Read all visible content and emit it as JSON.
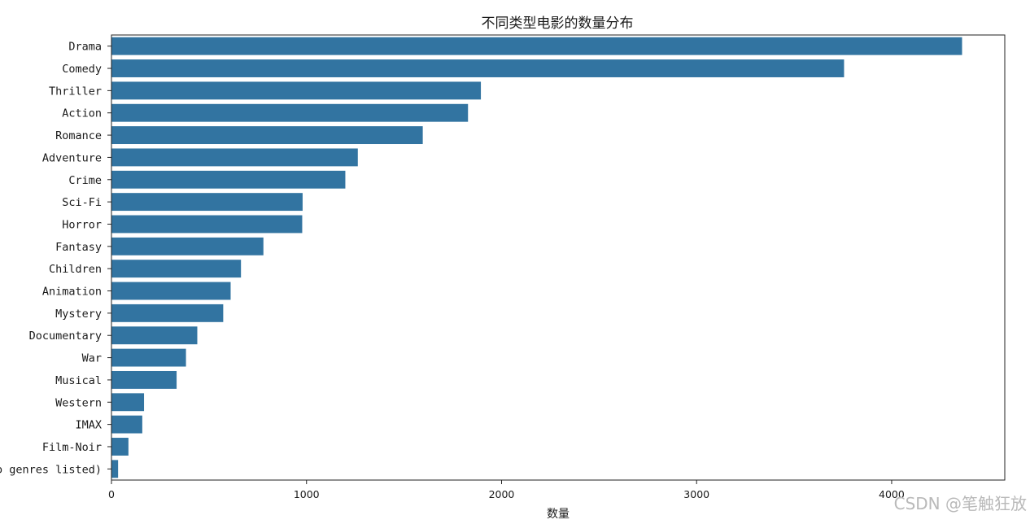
{
  "chart_data": {
    "type": "bar",
    "orientation": "horizontal",
    "title": "不同类型电影的数量分布",
    "xlabel": "数量",
    "ylabel": "",
    "xlim": [
      0,
      4580
    ],
    "xticks": [
      0,
      1000,
      2000,
      3000,
      4000
    ],
    "grid": false,
    "bar_color": "#3274a1",
    "categories": [
      "Drama",
      "Comedy",
      "Thriller",
      "Action",
      "Romance",
      "Adventure",
      "Crime",
      "Sci-Fi",
      "Horror",
      "Fantasy",
      "Children",
      "Animation",
      "Mystery",
      "Documentary",
      "War",
      "Musical",
      "Western",
      "IMAX",
      "Film-Noir",
      "(no genres listed)"
    ],
    "values": [
      4361,
      3756,
      1894,
      1828,
      1596,
      1263,
      1199,
      980,
      978,
      779,
      664,
      611,
      573,
      440,
      382,
      334,
      167,
      158,
      87,
      34
    ]
  },
  "watermark": "CSDN @笔触狂放"
}
